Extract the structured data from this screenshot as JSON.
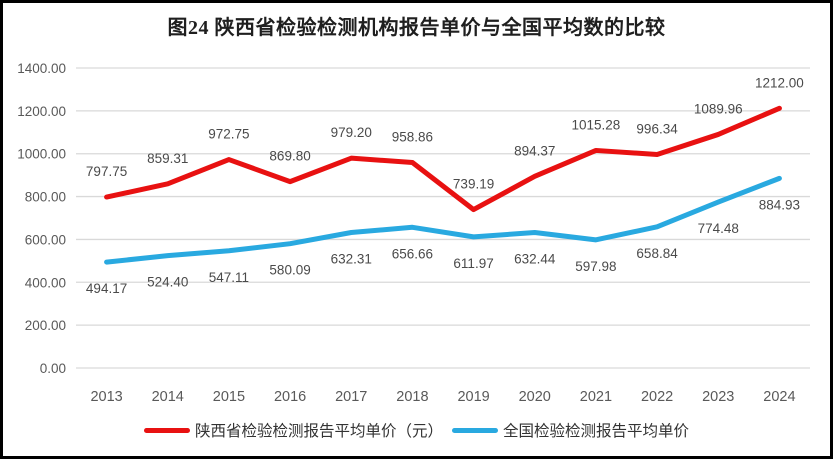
{
  "chart_data": {
    "type": "line",
    "title": "图24 陕西省检验检测机构报告单价与全国平均数的比较",
    "categories": [
      "2013",
      "2014",
      "2015",
      "2016",
      "2017",
      "2018",
      "2019",
      "2020",
      "2021",
      "2022",
      "2023",
      "2024"
    ],
    "series": [
      {
        "name": "陕西省检验检测报告平均单价（元）",
        "color": "#E81111",
        "label_position": "above",
        "values": [
          797.75,
          859.31,
          972.75,
          869.8,
          979.2,
          958.86,
          739.19,
          894.37,
          1015.28,
          996.34,
          1089.96,
          1212.0
        ]
      },
      {
        "name": "全国检验检测报告平均单价",
        "color": "#29A9E0",
        "label_position": "below",
        "values": [
          494.17,
          524.4,
          547.11,
          580.09,
          632.31,
          656.66,
          611.97,
          632.44,
          597.98,
          658.84,
          774.48,
          884.93
        ]
      }
    ],
    "ylim": [
      0,
      1400
    ],
    "ytick_step": 200,
    "value_decimals": 2,
    "grid": true,
    "legend_position": "bottom",
    "xlabel": "",
    "ylabel": "",
    "colors": {
      "gridline": "#D9D9D9",
      "axis_text": "#595959",
      "data_label_text": "#4a4a4a",
      "frame_border": "#000000",
      "background": "#ffffff"
    }
  }
}
